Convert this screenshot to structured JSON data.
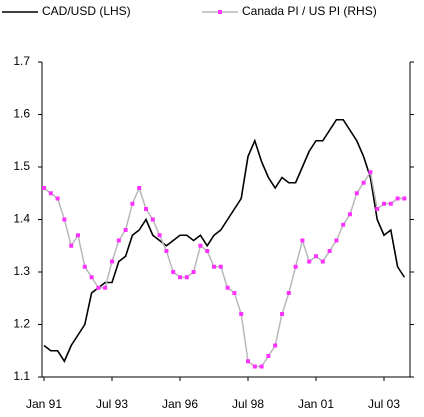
{
  "chart_data": {
    "type": "line",
    "categories": [
      "Jan 91",
      null,
      null,
      null,
      null,
      null,
      null,
      null,
      null,
      null,
      "Jul 93",
      null,
      null,
      null,
      null,
      null,
      null,
      null,
      null,
      null,
      "Jan 96",
      null,
      null,
      null,
      null,
      null,
      null,
      null,
      null,
      null,
      "Jul 98",
      null,
      null,
      null,
      null,
      null,
      null,
      null,
      null,
      null,
      "Jan 01",
      null,
      null,
      null,
      null,
      null,
      null,
      null,
      null,
      null,
      "Jul 03",
      null,
      null,
      null
    ],
    "series": [
      {
        "name": "CAD/USD (LHS)",
        "color": "#000000",
        "axis": "y",
        "values": [
          1.16,
          1.15,
          1.15,
          1.13,
          1.16,
          1.18,
          1.2,
          1.26,
          1.27,
          1.28,
          1.28,
          1.32,
          1.33,
          1.37,
          1.38,
          1.4,
          1.37,
          1.36,
          1.35,
          1.36,
          1.37,
          1.37,
          1.36,
          1.37,
          1.35,
          1.37,
          1.38,
          1.4,
          1.42,
          1.44,
          1.52,
          1.55,
          1.51,
          1.48,
          1.46,
          1.48,
          1.47,
          1.47,
          1.5,
          1.53,
          1.55,
          1.55,
          1.57,
          1.59,
          1.59,
          1.57,
          1.55,
          1.52,
          1.48,
          1.4,
          1.37,
          1.38,
          1.31,
          1.29
        ]
      },
      {
        "name": "Canada PI / US PI (RHS)",
        "color": "#b8b8b8",
        "marker_color": "#ff33ff",
        "axis": "y2",
        "values": [
          1.46,
          1.45,
          1.44,
          1.4,
          1.35,
          1.37,
          1.31,
          1.29,
          1.27,
          1.27,
          1.32,
          1.36,
          1.38,
          1.43,
          1.46,
          1.42,
          1.4,
          1.37,
          1.34,
          1.3,
          1.29,
          1.29,
          1.3,
          1.35,
          1.34,
          1.31,
          1.31,
          1.27,
          1.26,
          1.22,
          1.13,
          1.12,
          1.12,
          1.14,
          1.16,
          1.22,
          1.26,
          1.31,
          1.36,
          1.32,
          1.33,
          1.32,
          1.34,
          1.36,
          1.39,
          1.41,
          1.45,
          1.47,
          1.49,
          1.42,
          1.43,
          1.43,
          1.44,
          1.44
        ]
      }
    ],
    "ylim": [
      1.1,
      1.7
    ],
    "yticks": [
      1.1,
      1.2,
      1.3,
      1.4,
      1.5,
      1.6,
      1.7
    ],
    "y2lim": [
      1.1,
      1.7
    ]
  }
}
